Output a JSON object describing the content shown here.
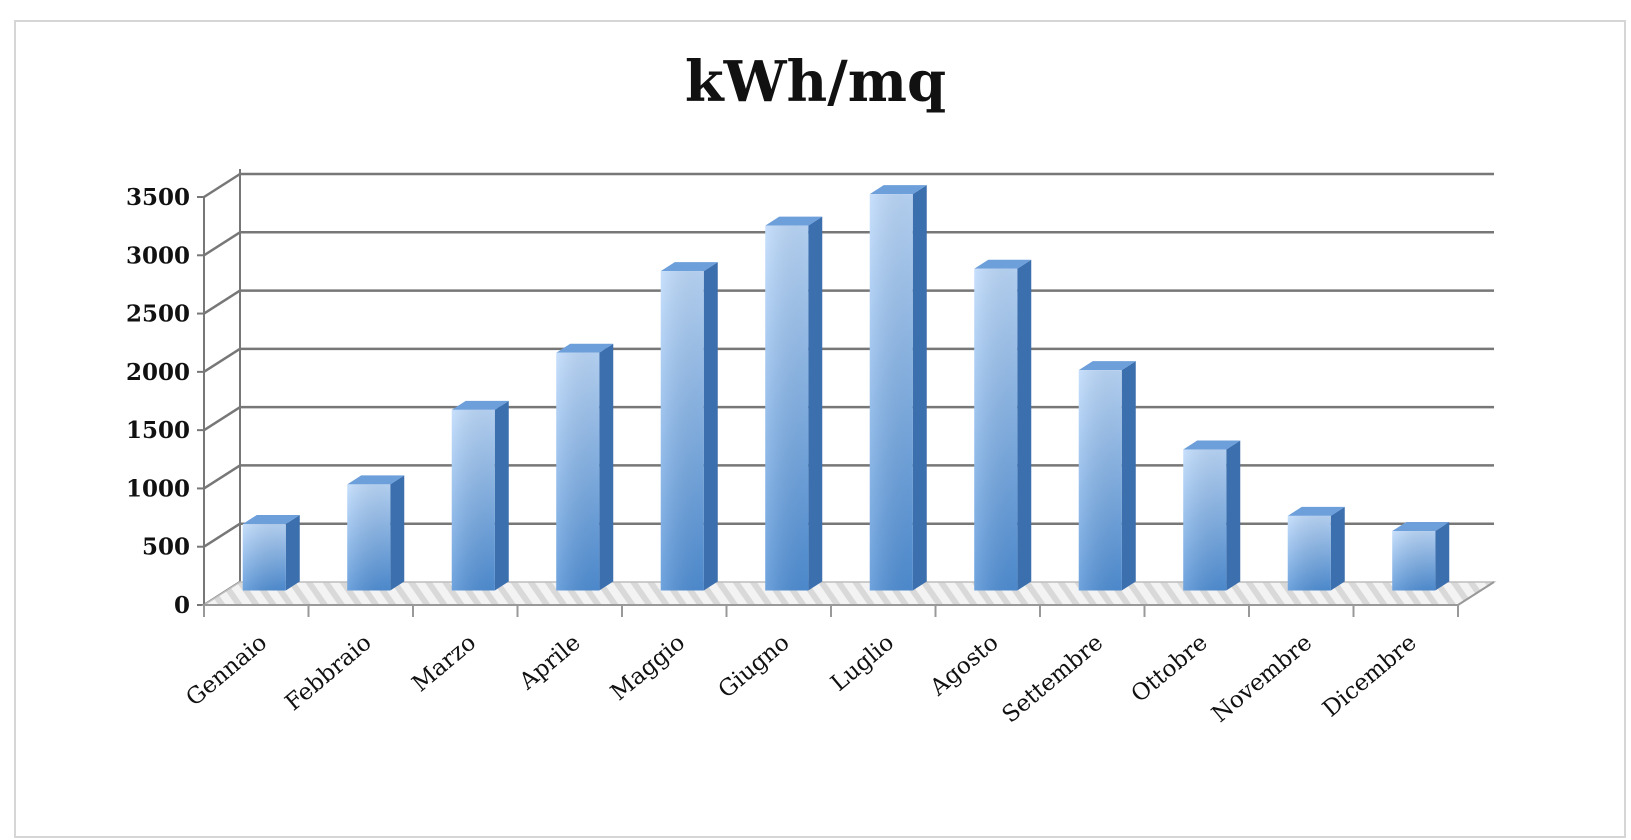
{
  "chart_data": {
    "type": "bar",
    "title": "kWh/mq",
    "xlabel": "",
    "ylabel": "",
    "categories": [
      "Gennaio",
      "Febbraio",
      "Marzo",
      "Aprile",
      "Maggio",
      "Giugno",
      "Luglio",
      "Agosto",
      "Settembre",
      "Ottobre",
      "Novembre",
      "Dicembre"
    ],
    "values": [
      570,
      910,
      1550,
      2040,
      2740,
      3130,
      3400,
      2760,
      1890,
      1210,
      640,
      510
    ],
    "yticks": [
      0,
      500,
      1000,
      1500,
      2000,
      2500,
      3000,
      3500
    ],
    "ylim": [
      0,
      3500
    ],
    "grid": true,
    "legend": "none",
    "style": "3d-column"
  },
  "colors": {
    "bar_front_top": "#bcd9fb",
    "bar_front_bottom": "#4f8fd6",
    "bar_top": "#6d9fdb",
    "bar_side": "#3b6fae",
    "gridline": "#777777",
    "floor": "#ececec"
  }
}
